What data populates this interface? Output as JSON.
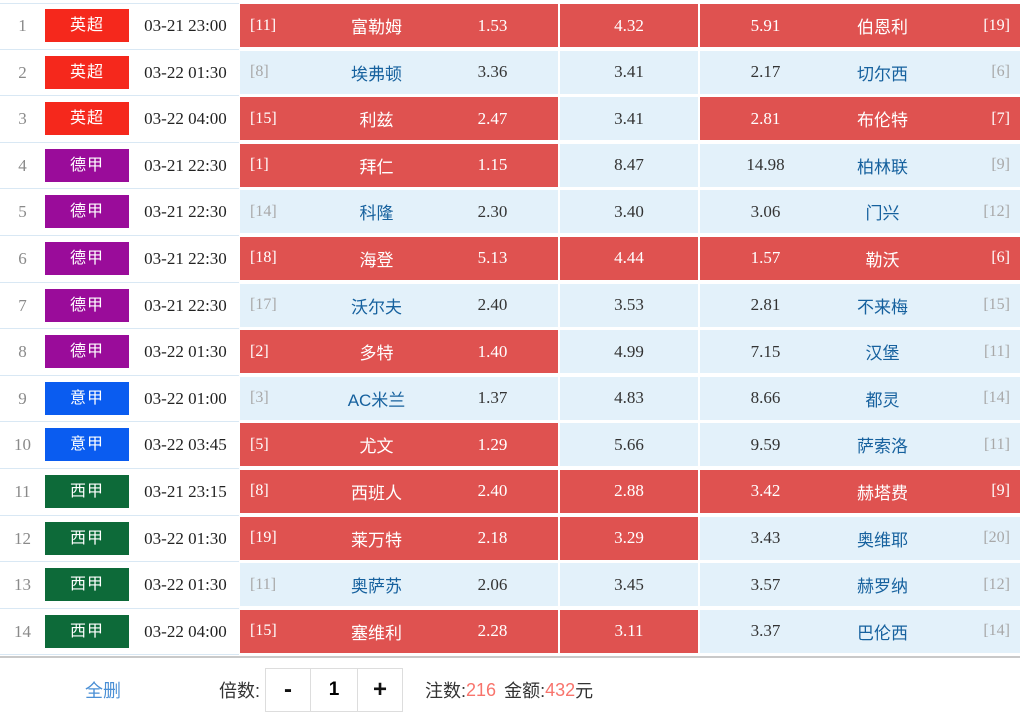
{
  "colors": {
    "selected_cell": "#df5250",
    "unselected_cell": "#e3f1fa",
    "league_yingchao_red": "#f5281c",
    "league_dejia_purple": "#9a0c9a",
    "league_yijia_blue": "#0a5cf0",
    "league_xijia_green": "#0d6a39",
    "team_name_blue": "#16619e",
    "footer_value_red": "#f8746c",
    "delete_all_blue": "#4a8fd5"
  },
  "matches": [
    {
      "no": "1",
      "league": "英超",
      "league_color": "#f5281c",
      "time": "03-21 23:00",
      "home_rank": "[11]",
      "home": "富勒姆",
      "odds_home": "1.53",
      "odds_draw": "4.32",
      "odds_away": "5.91",
      "away": "伯恩利",
      "away_rank": "[19]",
      "selected": {
        "home": true,
        "draw": true,
        "away": true
      }
    },
    {
      "no": "2",
      "league": "英超",
      "league_color": "#f5281c",
      "time": "03-22 01:30",
      "home_rank": "[8]",
      "home": "埃弗顿",
      "odds_home": "3.36",
      "odds_draw": "3.41",
      "odds_away": "2.17",
      "away": "切尔西",
      "away_rank": "[6]",
      "selected": {
        "home": false,
        "draw": false,
        "away": false
      }
    },
    {
      "no": "3",
      "league": "英超",
      "league_color": "#f5281c",
      "time": "03-22 04:00",
      "home_rank": "[15]",
      "home": "利兹",
      "odds_home": "2.47",
      "odds_draw": "3.41",
      "odds_away": "2.81",
      "away": "布伦特",
      "away_rank": "[7]",
      "selected": {
        "home": true,
        "draw": false,
        "away": true
      }
    },
    {
      "no": "4",
      "league": "德甲",
      "league_color": "#9a0c9a",
      "time": "03-21 22:30",
      "home_rank": "[1]",
      "home": "拜仁",
      "odds_home": "1.15",
      "odds_draw": "8.47",
      "odds_away": "14.98",
      "away": "柏林联",
      "away_rank": "[9]",
      "selected": {
        "home": true,
        "draw": false,
        "away": false
      }
    },
    {
      "no": "5",
      "league": "德甲",
      "league_color": "#9a0c9a",
      "time": "03-21 22:30",
      "home_rank": "[14]",
      "home": "科隆",
      "odds_home": "2.30",
      "odds_draw": "3.40",
      "odds_away": "3.06",
      "away": "门兴",
      "away_rank": "[12]",
      "selected": {
        "home": false,
        "draw": false,
        "away": false
      }
    },
    {
      "no": "6",
      "league": "德甲",
      "league_color": "#9a0c9a",
      "time": "03-21 22:30",
      "home_rank": "[18]",
      "home": "海登",
      "odds_home": "5.13",
      "odds_draw": "4.44",
      "odds_away": "1.57",
      "away": "勒沃",
      "away_rank": "[6]",
      "selected": {
        "home": true,
        "draw": true,
        "away": true
      }
    },
    {
      "no": "7",
      "league": "德甲",
      "league_color": "#9a0c9a",
      "time": "03-21 22:30",
      "home_rank": "[17]",
      "home": "沃尔夫",
      "odds_home": "2.40",
      "odds_draw": "3.53",
      "odds_away": "2.81",
      "away": "不来梅",
      "away_rank": "[15]",
      "selected": {
        "home": false,
        "draw": false,
        "away": false
      }
    },
    {
      "no": "8",
      "league": "德甲",
      "league_color": "#9a0c9a",
      "time": "03-22 01:30",
      "home_rank": "[2]",
      "home": "多特",
      "odds_home": "1.40",
      "odds_draw": "4.99",
      "odds_away": "7.15",
      "away": "汉堡",
      "away_rank": "[11]",
      "selected": {
        "home": true,
        "draw": false,
        "away": false
      }
    },
    {
      "no": "9",
      "league": "意甲",
      "league_color": "#0a5cf0",
      "time": "03-22 01:00",
      "home_rank": "[3]",
      "home": "AC米兰",
      "odds_home": "1.37",
      "odds_draw": "4.83",
      "odds_away": "8.66",
      "away": "都灵",
      "away_rank": "[14]",
      "selected": {
        "home": false,
        "draw": false,
        "away": false
      }
    },
    {
      "no": "10",
      "league": "意甲",
      "league_color": "#0a5cf0",
      "time": "03-22 03:45",
      "home_rank": "[5]",
      "home": "尤文",
      "odds_home": "1.29",
      "odds_draw": "5.66",
      "odds_away": "9.59",
      "away": "萨索洛",
      "away_rank": "[11]",
      "selected": {
        "home": true,
        "draw": false,
        "away": false
      }
    },
    {
      "no": "11",
      "league": "西甲",
      "league_color": "#0d6a39",
      "time": "03-21 23:15",
      "home_rank": "[8]",
      "home": "西班人",
      "odds_home": "2.40",
      "odds_draw": "2.88",
      "odds_away": "3.42",
      "away": "赫塔费",
      "away_rank": "[9]",
      "selected": {
        "home": true,
        "draw": true,
        "away": true
      }
    },
    {
      "no": "12",
      "league": "西甲",
      "league_color": "#0d6a39",
      "time": "03-22 01:30",
      "home_rank": "[19]",
      "home": "莱万特",
      "odds_home": "2.18",
      "odds_draw": "3.29",
      "odds_away": "3.43",
      "away": "奥维耶",
      "away_rank": "[20]",
      "selected": {
        "home": true,
        "draw": true,
        "away": false
      }
    },
    {
      "no": "13",
      "league": "西甲",
      "league_color": "#0d6a39",
      "time": "03-22 01:30",
      "home_rank": "[11]",
      "home": "奥萨苏",
      "odds_home": "2.06",
      "odds_draw": "3.45",
      "odds_away": "3.57",
      "away": "赫罗纳",
      "away_rank": "[12]",
      "selected": {
        "home": false,
        "draw": false,
        "away": false
      }
    },
    {
      "no": "14",
      "league": "西甲",
      "league_color": "#0d6a39",
      "time": "03-22 04:00",
      "home_rank": "[15]",
      "home": "塞维利",
      "odds_home": "2.28",
      "odds_draw": "3.11",
      "odds_away": "3.37",
      "away": "巴伦西",
      "away_rank": "[14]",
      "selected": {
        "home": true,
        "draw": true,
        "away": false
      }
    }
  ],
  "footer": {
    "delete_all_label": "全删",
    "multiplier_label": "倍数:",
    "minus_label": "-",
    "multiplier_value": "1",
    "plus_label": "+",
    "bets_label": "注数:",
    "bets_value": "216",
    "amount_label": "金额:",
    "amount_value": "432",
    "amount_unit": "元"
  }
}
